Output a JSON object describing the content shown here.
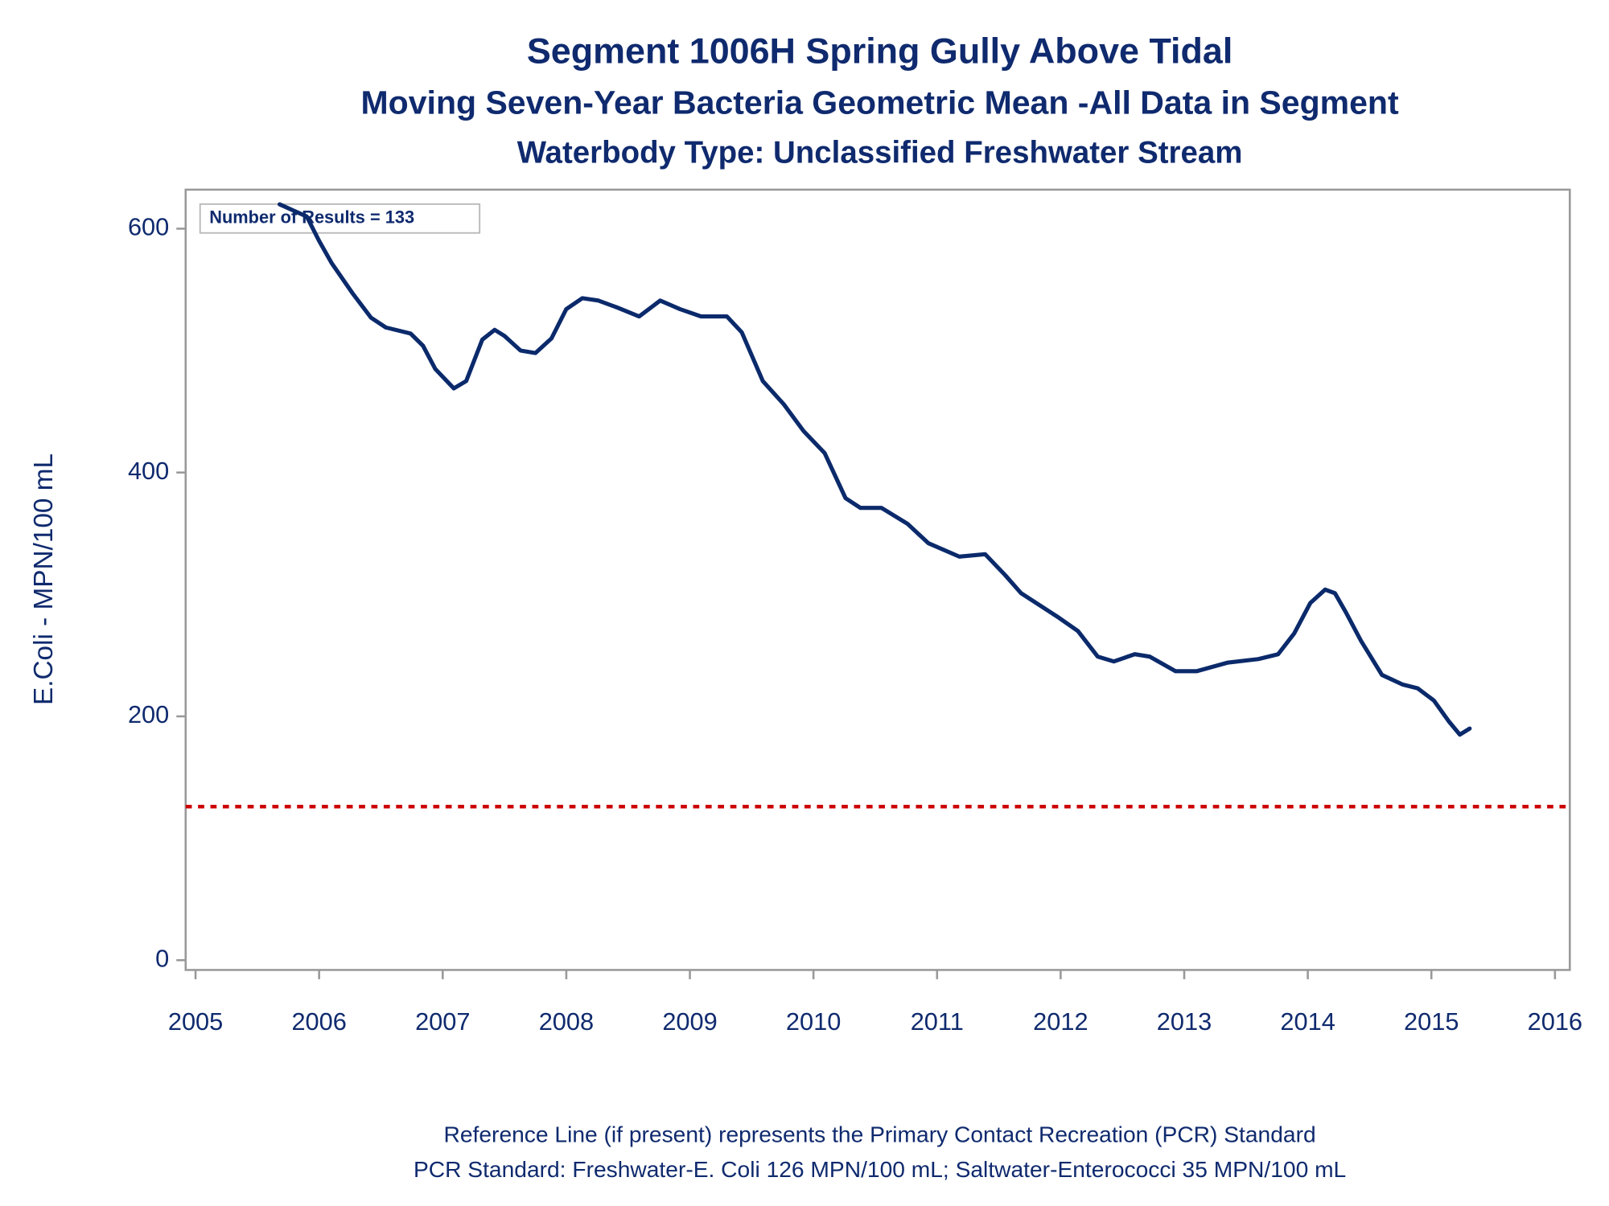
{
  "chart_data": {
    "type": "line",
    "title": "Segment 1006H   Spring Gully Above Tidal",
    "subtitle": "Moving Seven-Year Bacteria Geometric Mean -All Data in Segment",
    "subtitle2": "Waterbody Type: Unclassified Freshwater Stream",
    "ylabel": "E.Coli - MPN/100 mL",
    "annotation": "Number of Results = 133",
    "footnotes": [
      "Reference Line (if present) represents the Primary Contact Recreation (PCR) Standard",
      "PCR Standard: Freshwater-E. Coli 126 MPN/100 mL; Saltwater-Enterococci 35 MPN/100 mL"
    ],
    "x": [
      2005.68,
      2005.79,
      2005.9,
      2006.0,
      2006.1,
      2006.27,
      2006.42,
      2006.54,
      2006.74,
      2006.84,
      2006.94,
      2007.09,
      2007.19,
      2007.32,
      2007.42,
      2007.5,
      2007.63,
      2007.75,
      2007.88,
      2008.0,
      2008.13,
      2008.26,
      2008.42,
      2008.59,
      2008.76,
      2008.92,
      2009.09,
      2009.3,
      2009.42,
      2009.59,
      2009.76,
      2009.92,
      2010.09,
      2010.26,
      2010.38,
      2010.55,
      2010.76,
      2010.93,
      2011.18,
      2011.39,
      2011.55,
      2011.68,
      2011.97,
      2012.14,
      2012.3,
      2012.43,
      2012.6,
      2012.72,
      2012.93,
      2013.1,
      2013.35,
      2013.6,
      2013.76,
      2013.89,
      2014.02,
      2014.14,
      2014.22,
      2014.31,
      2014.43,
      2014.6,
      2014.77,
      2014.89,
      2015.02,
      2015.14,
      2015.23,
      2015.31
    ],
    "series": [
      {
        "name": "Geometric Mean",
        "color": "#0b2a6b",
        "values": [
          620,
          615,
          610,
          590,
          572,
          547,
          527,
          519,
          514,
          504,
          485,
          469,
          475,
          509,
          517,
          512,
          500,
          498,
          510,
          534,
          543,
          541,
          535,
          528,
          541,
          534,
          528,
          528,
          515,
          475,
          456,
          434,
          416,
          379,
          371,
          371,
          358,
          342,
          331,
          333,
          316,
          301,
          282,
          270,
          249,
          245,
          251,
          249,
          237,
          237,
          244,
          247,
          251,
          268,
          293,
          304,
          301,
          285,
          262,
          234,
          226,
          223,
          213,
          196,
          185,
          190
        ]
      }
    ],
    "reference_line": {
      "value": 126,
      "color": "#cc0000"
    },
    "xlim": [
      2004.92,
      2016.12
    ],
    "xticks": [
      2005,
      2006,
      2007,
      2008,
      2009,
      2010,
      2011,
      2012,
      2013,
      2014,
      2015,
      2016
    ],
    "ylim": [
      -8,
      632
    ],
    "yticks": [
      0,
      200,
      400,
      600
    ]
  }
}
